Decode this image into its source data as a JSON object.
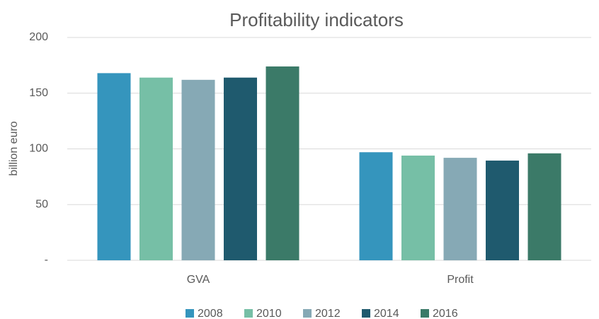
{
  "chart_data": {
    "type": "bar",
    "title": "Profitability indicators",
    "y_label": "billion euro",
    "categories": [
      "GVA",
      "Profit"
    ],
    "series": [
      {
        "name": "2008",
        "color": "#3595bd",
        "values": [
          168,
          97
        ]
      },
      {
        "name": "2010",
        "color": "#76bfa6",
        "values": [
          164,
          94
        ]
      },
      {
        "name": "2012",
        "color": "#86a9b5",
        "values": [
          162,
          92
        ]
      },
      {
        "name": "2014",
        "color": "#1f5a6e",
        "values": [
          164,
          89.5
        ]
      },
      {
        "name": "2016",
        "color": "#3b7a68",
        "values": [
          174,
          96
        ]
      }
    ],
    "ylim": [
      0,
      200
    ],
    "yticks": [
      {
        "value": 0,
        "label": "-"
      },
      50,
      100,
      150,
      200
    ],
    "grid": true,
    "legend": "bottom"
  }
}
